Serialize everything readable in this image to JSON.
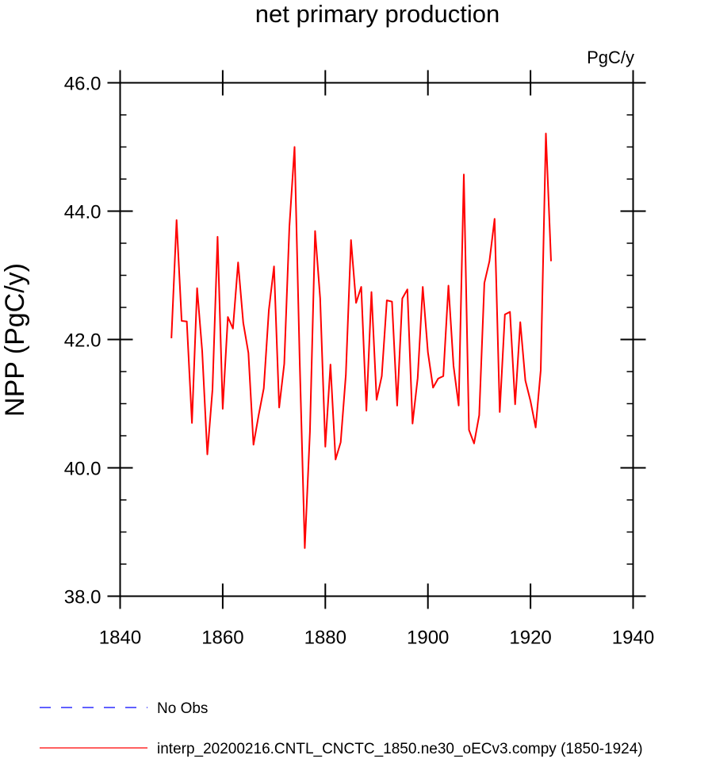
{
  "chart_data": {
    "type": "line",
    "title": "net primary production",
    "units_label": "PgC/y",
    "ylabel": "NPP  (PgC/y)",
    "xlabel": "",
    "xlim": [
      1840,
      1940
    ],
    "ylim": [
      38.0,
      46.0
    ],
    "x_ticks": [
      1840,
      1860,
      1880,
      1900,
      1920,
      1940
    ],
    "x_tick_labels": [
      "1840",
      "1860",
      "1880",
      "1900",
      "1920",
      "1940"
    ],
    "y_ticks": [
      38.0,
      40.0,
      42.0,
      44.0,
      46.0
    ],
    "y_tick_labels": [
      "38.0",
      "40.0",
      "42.0",
      "44.0",
      "46.0"
    ],
    "grid": false,
    "legend_position": "bottom-left",
    "series": [
      {
        "name": "interp_20200216.CNTL_CNCTC_1850.ne30_oECv3.compy (1850-1924)",
        "color": "#ff0000",
        "dash": "solid",
        "x": [
          1850,
          1851,
          1852,
          1853,
          1854,
          1855,
          1856,
          1857,
          1858,
          1859,
          1860,
          1861,
          1862,
          1863,
          1864,
          1865,
          1866,
          1867,
          1868,
          1869,
          1870,
          1871,
          1872,
          1873,
          1874,
          1875,
          1876,
          1877,
          1878,
          1879,
          1880,
          1881,
          1882,
          1883,
          1884,
          1885,
          1886,
          1887,
          1888,
          1889,
          1890,
          1891,
          1892,
          1893,
          1894,
          1895,
          1896,
          1897,
          1898,
          1899,
          1900,
          1901,
          1902,
          1903,
          1904,
          1905,
          1906,
          1907,
          1908,
          1909,
          1910,
          1911,
          1912,
          1913,
          1914,
          1915,
          1916,
          1917,
          1918,
          1919,
          1920,
          1921,
          1922,
          1923,
          1924
        ],
        "values": [
          42.02,
          43.86,
          42.29,
          42.28,
          40.7,
          42.8,
          41.82,
          40.21,
          41.22,
          43.6,
          40.92,
          42.35,
          42.17,
          43.2,
          42.26,
          41.79,
          40.36,
          40.82,
          41.24,
          42.46,
          43.14,
          40.94,
          41.62,
          43.76,
          45.0,
          41.71,
          38.75,
          40.56,
          43.69,
          42.64,
          40.33,
          41.61,
          40.13,
          40.4,
          41.45,
          43.55,
          42.57,
          42.82,
          40.89,
          42.74,
          41.06,
          41.43,
          42.61,
          42.59,
          40.97,
          42.64,
          42.78,
          40.69,
          41.4,
          42.82,
          41.8,
          41.25,
          41.39,
          41.43,
          42.84,
          41.59,
          40.97,
          44.57,
          40.59,
          40.38,
          40.82,
          42.88,
          43.22,
          43.88,
          40.87,
          42.39,
          42.43,
          40.99,
          42.27,
          41.36,
          41.04,
          40.63,
          41.52,
          45.21,
          43.22
        ]
      },
      {
        "name": "No Obs",
        "color": "#0000ff",
        "dash": "dashed",
        "x": [],
        "values": []
      }
    ]
  }
}
